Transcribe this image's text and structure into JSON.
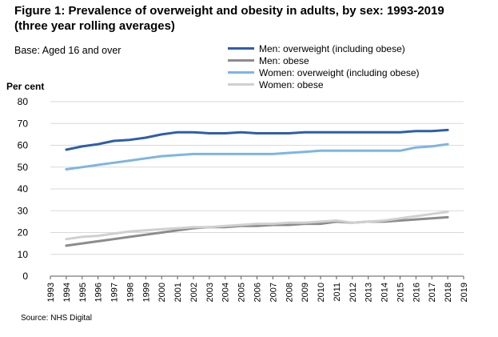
{
  "figure": {
    "title": "Figure 1: Prevalence of overweight and obesity in adults, by sex: 1993-2019 (three year rolling averages)",
    "base_note": "Base: Aged 16 and over",
    "source": "Source: NHS Digital"
  },
  "chart_data": {
    "type": "line",
    "title": "Figure 1: Prevalence of overweight and obesity in adults, by sex: 1993-2019 (three year rolling averages)",
    "ylabel": "Per cent",
    "xlabel": "",
    "ylim": [
      0,
      80
    ],
    "yticks": [
      0,
      10,
      20,
      30,
      40,
      50,
      60,
      70,
      80
    ],
    "grid": "horizontal",
    "legend_position": "top-right",
    "x": [
      "1993",
      "1994",
      "1995",
      "1996",
      "1997",
      "1998",
      "1999",
      "2000",
      "2001",
      "2002",
      "2003",
      "2004",
      "2005",
      "2006",
      "2007",
      "2008",
      "2009",
      "2010",
      "2011",
      "2012",
      "2013",
      "2014",
      "2015",
      "2016",
      "2017",
      "2018",
      "2019"
    ],
    "series": [
      {
        "name": "Men: overweight (including obese)",
        "color": "#2E5EAA",
        "values": [
          null,
          58,
          59.5,
          60.5,
          62,
          62.5,
          63.5,
          65,
          66,
          66,
          65.5,
          65.5,
          66,
          65.5,
          65.5,
          65.5,
          66,
          66,
          66,
          66,
          66,
          66,
          66,
          66.5,
          66.5,
          67,
          null
        ]
      },
      {
        "name": "Men: obese",
        "color": "#8C8C8C",
        "values": [
          null,
          14,
          15,
          16,
          17,
          18,
          19,
          20,
          21,
          22,
          22.5,
          22.5,
          23,
          23,
          23.5,
          23.5,
          24,
          24,
          25,
          24.5,
          25,
          25,
          25.5,
          26,
          26.5,
          27,
          null
        ]
      },
      {
        "name": "Women: overweight (including obese)",
        "color": "#7DB5E3",
        "values": [
          null,
          49,
          50,
          51,
          52,
          53,
          54,
          55,
          55.5,
          56,
          56,
          56,
          56,
          56,
          56,
          56.5,
          57,
          57.5,
          57.5,
          57.5,
          57.5,
          57.5,
          57.5,
          59,
          59.5,
          60.5,
          null
        ]
      },
      {
        "name": "Women: obese",
        "color": "#D0D0D0",
        "values": [
          null,
          17,
          18,
          18.5,
          19.5,
          20.5,
          21,
          21.5,
          22,
          22.5,
          22.5,
          23,
          23.5,
          24,
          24,
          24.5,
          24.5,
          25,
          25.5,
          24.5,
          25,
          25.5,
          26.5,
          27.5,
          28.5,
          29.5,
          null
        ]
      }
    ]
  }
}
